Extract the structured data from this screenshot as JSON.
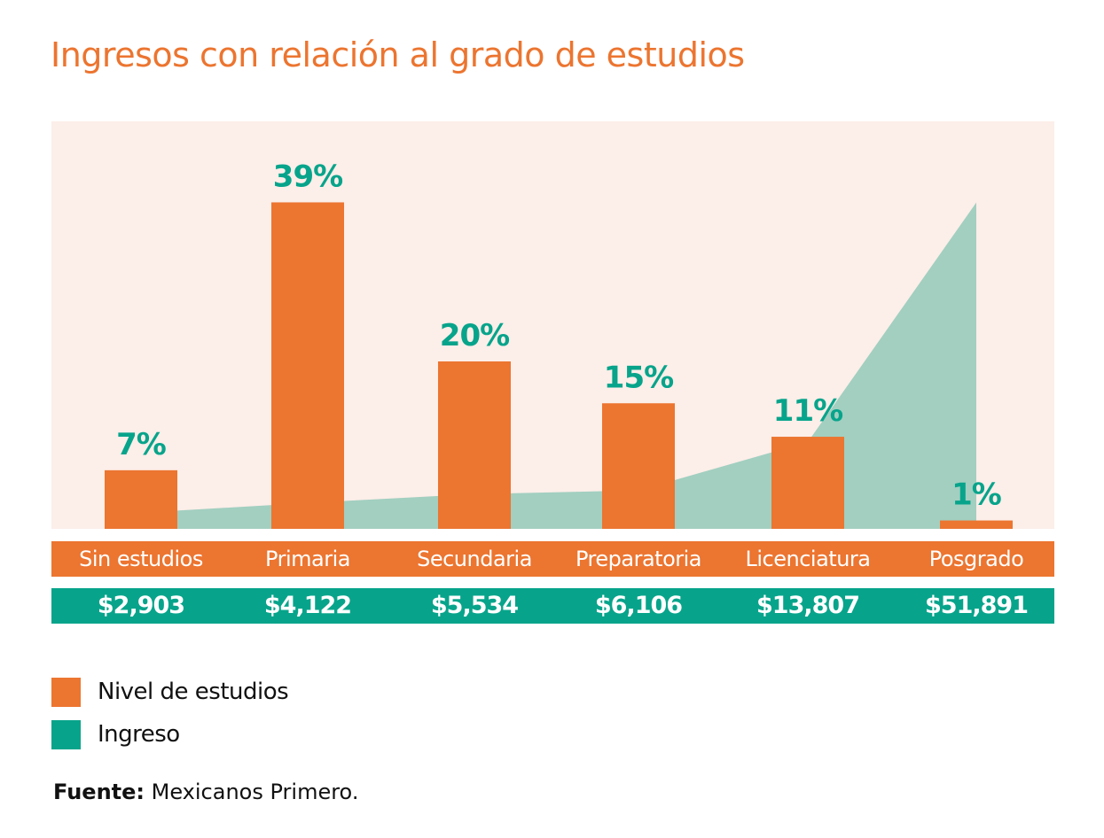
{
  "title": "Ingresos con relación al grado de estudios",
  "colors": {
    "orange": "#EC7530",
    "teal": "#07A48B",
    "area_teal": "#A2CFC0",
    "plot_background": "#FCEEE9"
  },
  "chart_data": {
    "type": "bar",
    "title": "Ingresos con relación al grado de estudios",
    "categories": [
      "Sin estudios",
      "Primaria",
      "Secundaria",
      "Preparatoria",
      "Licenciatura",
      "Posgrado"
    ],
    "series": [
      {
        "name": "Nivel de estudios",
        "type": "bar",
        "values": [
          7,
          39,
          20,
          15,
          11,
          1
        ],
        "labels": [
          "7%",
          "39%",
          "20%",
          "15%",
          "11%",
          "1%"
        ]
      },
      {
        "name": "Ingreso",
        "type": "area",
        "values": [
          2903,
          4122,
          5534,
          6106,
          13807,
          51891
        ],
        "labels": [
          "$2,903",
          "$4,122",
          "$5,534",
          "$6,106",
          "$13,807",
          "$51,891"
        ]
      }
    ],
    "legend_position": "bottom-left",
    "grid": false
  },
  "source": {
    "label": "Fuente:",
    "text": " Mexicanos Primero."
  }
}
